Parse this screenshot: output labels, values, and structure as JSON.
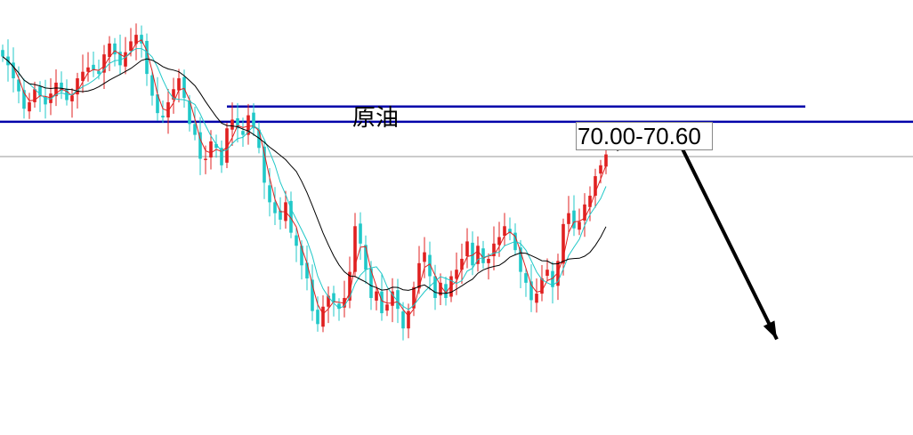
{
  "chart_data": {
    "type": "candlestick",
    "title": "原油",
    "annotation": "70.00-70.60",
    "ylim": [
      60,
      80
    ],
    "grid": false,
    "colors": {
      "up": "#e02020",
      "down": "#20c8c8",
      "ma_fast": "#e02020",
      "ma_mid": "#20c8c8",
      "ma_slow": "#000000",
      "level": "#0000aa",
      "reference": "#999999",
      "arrow": "#000000"
    },
    "levels": [
      {
        "name": "resistance-upper",
        "value": 75.1
      },
      {
        "name": "resistance-lower",
        "value": 74.4
      }
    ],
    "reference_level": 72.8,
    "projection": [
      {
        "t": 115,
        "value": 73.1
      },
      {
        "t": 125,
        "value": 74.3
      },
      {
        "t": 145,
        "value": 64.4
      }
    ],
    "close_series": [
      77.4,
      77.0,
      76.4,
      75.8,
      75.0,
      75.3,
      75.9,
      75.6,
      75.2,
      75.7,
      76.2,
      75.8,
      75.4,
      75.6,
      76.4,
      76.7,
      76.9,
      76.8,
      76.6,
      77.5,
      78.0,
      77.5,
      77.0,
      77.6,
      78.1,
      78.4,
      78.0,
      76.6,
      75.6,
      74.8,
      74.6,
      75.3,
      75.9,
      76.4,
      75.5,
      74.3,
      73.8,
      72.7,
      72.7,
      73.5,
      73.2,
      72.4,
      74.1,
      74.5,
      74.1,
      73.8,
      74.7,
      74.1,
      73.2,
      71.6,
      70.7,
      70.2,
      69.9,
      70.7,
      69.3,
      68.7,
      67.8,
      67.2,
      65.7,
      65.1,
      65.9,
      66.4,
      66.1,
      65.8,
      66.3,
      67.5,
      69.6,
      68.8,
      67.6,
      66.3,
      66.6,
      65.6,
      66.0,
      66.6,
      65.8,
      64.9,
      65.7,
      66.8,
      67.9,
      68.4,
      67.3,
      66.3,
      67.0,
      66.3,
      67.3,
      67.6,
      68.1,
      68.9,
      67.8,
      68.7,
      67.9,
      68.1,
      68.8,
      69.1,
      69.6,
      69.3,
      68.5,
      67.5,
      67.0,
      66.2,
      66.5,
      67.2,
      67.6,
      66.8,
      68.0,
      69.7,
      70.2,
      69.5,
      69.8,
      70.6,
      71.0,
      71.9,
      72.4,
      72.9
    ]
  }
}
